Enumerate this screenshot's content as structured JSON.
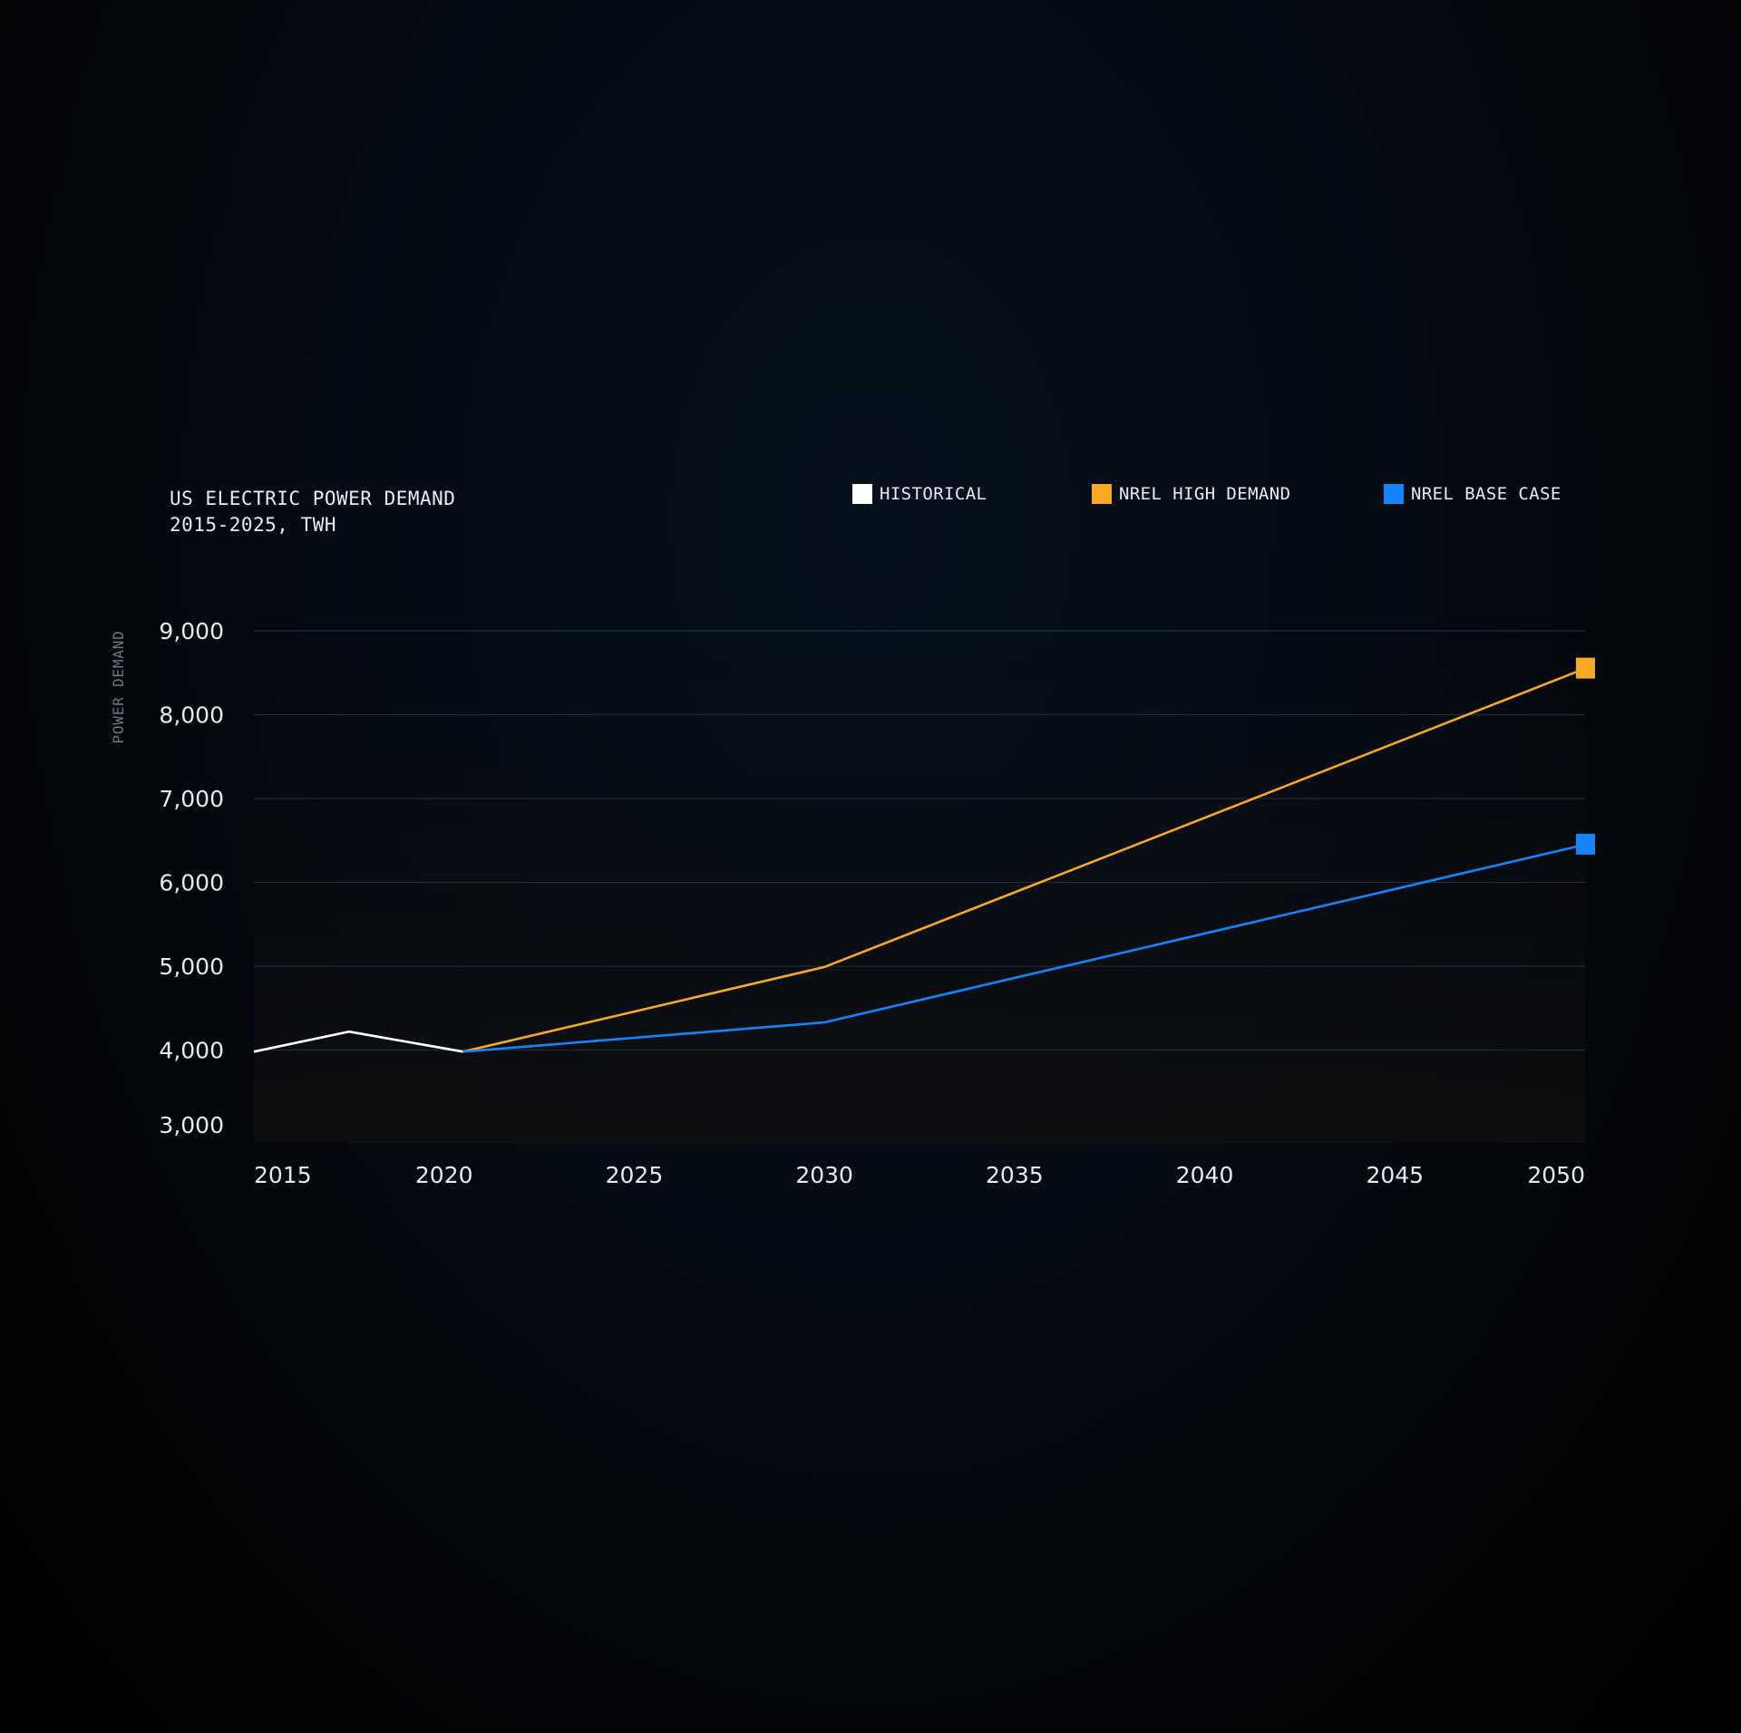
{
  "chart_data": {
    "type": "line",
    "title": "US ELECTRIC POWER DEMAND",
    "subtitle": "2015-2025, TWH",
    "ylabel": "POWER DEMAND",
    "xlabel": "",
    "ylim": [
      3000,
      9000
    ],
    "xlim": [
      2015,
      2050
    ],
    "y_ticks": [
      9000,
      8000,
      7000,
      6000,
      5000,
      4000,
      3000
    ],
    "y_tick_labels": [
      "9,000",
      "8,000",
      "7,000",
      "6,000",
      "5,000",
      "4,000",
      "3,000"
    ],
    "x_ticks": [
      2015,
      2020,
      2025,
      2030,
      2035,
      2040,
      2045,
      2050
    ],
    "x_tick_labels": [
      "2015",
      "2020",
      "2025",
      "2030",
      "2035",
      "2040",
      "2045",
      "2050"
    ],
    "grid": "horizontal",
    "legend_position": "top-right",
    "series": [
      {
        "name": "HISTORICAL",
        "color": "#ffffff",
        "points": [
          [
            2015,
            3980
          ],
          [
            2017.5,
            4220
          ],
          [
            2020.5,
            3980
          ]
        ]
      },
      {
        "name": "NREL HIGH DEMAND",
        "color": "#f9a825",
        "points": [
          [
            2020.5,
            3980
          ],
          [
            2030,
            4990
          ],
          [
            2050,
            8550
          ]
        ]
      },
      {
        "name": "NREL BASE CASE",
        "color": "#1683ff",
        "points": [
          [
            2020.5,
            3980
          ],
          [
            2030,
            4330
          ],
          [
            2050,
            6450
          ]
        ]
      }
    ]
  }
}
